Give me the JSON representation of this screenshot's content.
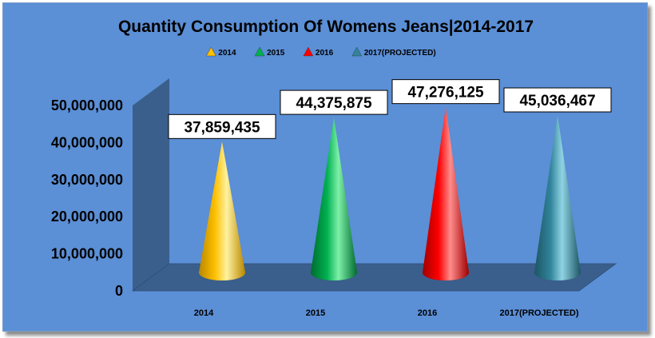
{
  "chart_data": {
    "type": "bar",
    "title": "Quantity Consumption Of Womens Jeans|2014-2017",
    "categories": [
      "2014",
      "2015",
      "2016",
      "2017(PROJECTED)"
    ],
    "series": [
      {
        "name": "2014",
        "category": "2014",
        "value": 37859435,
        "label": "37,859,435",
        "color": "#ffc000",
        "dark": "#b88700",
        "light": "#fff2a0"
      },
      {
        "name": "2015",
        "category": "2015",
        "value": 44375875,
        "label": "44,375,875",
        "color": "#00b050",
        "dark": "#006b30",
        "light": "#7ef0a8"
      },
      {
        "name": "2016",
        "category": "2016",
        "value": 47276125,
        "label": "47,276,125",
        "color": "#ff0000",
        "dark": "#a00000",
        "light": "#ff8c8c"
      },
      {
        "name": "2017(PROJECTED)",
        "category": "2017(PROJECTED)",
        "value": 45036467,
        "label": "45,036,467",
        "color": "#31849b",
        "dark": "#1d5563",
        "light": "#8fd3e3"
      }
    ],
    "yticks": [
      {
        "value": 0,
        "label": "0"
      },
      {
        "value": 10000000,
        "label": "10,000,000"
      },
      {
        "value": 20000000,
        "label": "20,000,000"
      },
      {
        "value": 30000000,
        "label": "30,000,000"
      },
      {
        "value": 40000000,
        "label": "40,000,000"
      },
      {
        "value": 50000000,
        "label": "50,000,000"
      }
    ],
    "ylim": [
      0,
      50000000
    ],
    "shape": "cone",
    "legend_position": "top",
    "grid": false,
    "colors": {
      "background": "#5b8fd6",
      "wall": "#3a5f8c",
      "floor": "#3a5f8c"
    }
  }
}
